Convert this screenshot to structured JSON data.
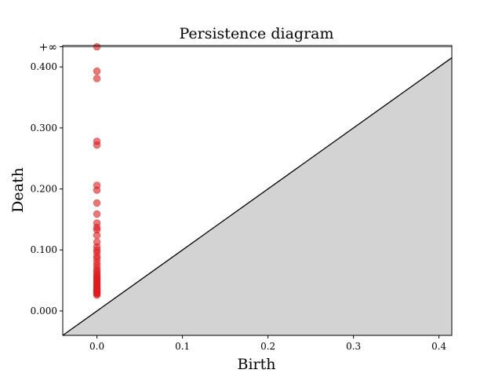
{
  "chart_data": {
    "type": "scatter",
    "title": "Persistence diagram",
    "xlabel": "Birth",
    "ylabel": "Death",
    "xlim": [
      -0.04,
      0.415
    ],
    "ylim": [
      -0.04,
      0.435
    ],
    "x_ticks": [
      0.0,
      0.1,
      0.2,
      0.3,
      0.4
    ],
    "x_tick_labels": [
      "0.0",
      "0.1",
      "0.2",
      "0.3",
      "0.4"
    ],
    "y_ticks": [
      0.0,
      0.1,
      0.2,
      0.3,
      0.4
    ],
    "y_tick_labels": [
      "0.000",
      "0.100",
      "0.200",
      "0.300",
      "0.400"
    ],
    "infinity_label": "+∞",
    "infinity_value": 0.433,
    "diagonal": true,
    "point_color": "#e31a1c",
    "diagonal_fill": "#d3d3d3",
    "infinity_line_color": "#808080",
    "series": [
      {
        "x": [
          0,
          0,
          0,
          0,
          0,
          0,
          0,
          0,
          0,
          0,
          0,
          0,
          0,
          0,
          0,
          0,
          0,
          0,
          0,
          0,
          0,
          0,
          0,
          0,
          0,
          0,
          0,
          0,
          0,
          0,
          0,
          0,
          0,
          0,
          0,
          0,
          0,
          0,
          0,
          0,
          0,
          0,
          0,
          0,
          0
        ],
        "y": [
          0.433,
          0.393,
          0.381,
          0.278,
          0.272,
          0.206,
          0.198,
          0.177,
          0.159,
          0.144,
          0.137,
          0.133,
          0.124,
          0.113,
          0.105,
          0.1,
          0.096,
          0.09,
          0.086,
          0.08,
          0.075,
          0.07,
          0.066,
          0.063,
          0.06,
          0.057,
          0.055,
          0.053,
          0.051,
          0.049,
          0.047,
          0.045,
          0.043,
          0.041,
          0.04,
          0.038,
          0.036,
          0.035,
          0.034,
          0.033,
          0.031,
          0.03,
          0.029,
          0.028,
          0.026
        ]
      }
    ]
  }
}
